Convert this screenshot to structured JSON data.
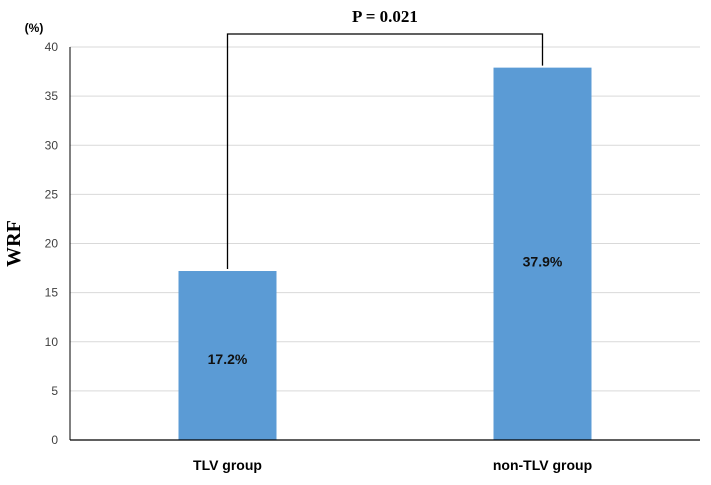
{
  "chart_data": {
    "type": "bar",
    "categories": [
      "TLV group",
      "non-TLV group"
    ],
    "values": [
      17.2,
      37.9
    ],
    "data_labels": [
      "17.2%",
      "37.9%"
    ],
    "ylabel": "WRF",
    "yunit": "(%)",
    "ylim": [
      0,
      40
    ],
    "yticks": [
      0,
      5,
      10,
      15,
      20,
      25,
      30,
      35,
      40
    ],
    "grid": true,
    "bar_color": "#5b9bd5",
    "annotation": "P = 0.021"
  }
}
